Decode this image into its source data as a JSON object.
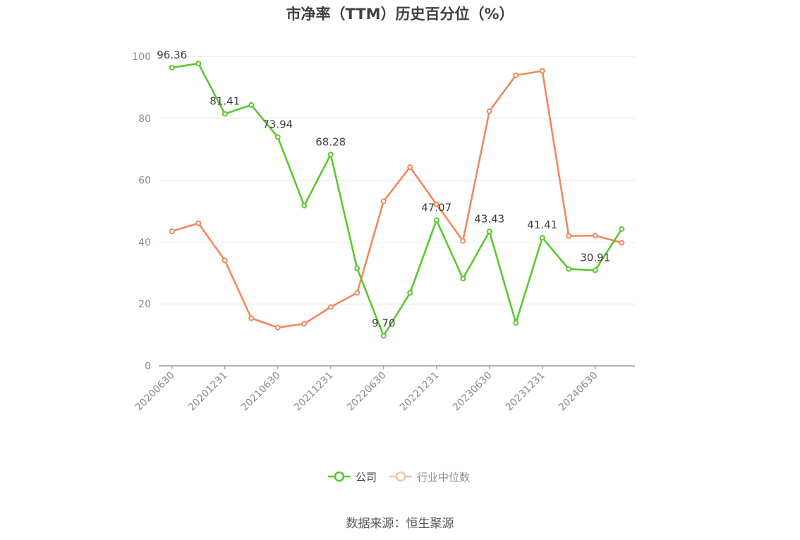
{
  "chart_data": {
    "type": "line",
    "title": "市净率（TTM）历史百分位（%）",
    "source_text": "数据来源：恒生聚源",
    "ylim": [
      0,
      100
    ],
    "yticks": [
      0,
      20,
      40,
      60,
      80,
      100
    ],
    "x": [
      "20200630",
      "20200930",
      "20201231",
      "20210331",
      "20210630",
      "20210930",
      "20211231",
      "20220331",
      "20220630",
      "20220930",
      "20221231",
      "20230331",
      "20230630",
      "20230930",
      "20231231",
      "20240331",
      "20240630",
      "20240930"
    ],
    "xtick_labels": [
      "20200630",
      "20201231",
      "20210630",
      "20211231",
      "20220630",
      "20221231",
      "20230630",
      "20231231",
      "20240630"
    ],
    "grid": true,
    "legend_position": "bottom-center",
    "series": [
      {
        "name": "公司",
        "color": "#5ac82e",
        "values": [
          96.36,
          97.7,
          81.41,
          84.3,
          73.94,
          51.8,
          68.28,
          31.5,
          9.7,
          23.6,
          47.07,
          28.2,
          43.43,
          13.9,
          41.41,
          31.3,
          30.91,
          44.2
        ],
        "labels": [
          "96.36",
          null,
          "81.41",
          null,
          "73.94",
          null,
          "68.28",
          null,
          "9.70",
          null,
          "47.07",
          null,
          "43.43",
          null,
          "41.41",
          null,
          "30.91",
          null
        ]
      },
      {
        "name": "行业中位数",
        "color": "#f0895c",
        "values": [
          43.5,
          46.1,
          34.1,
          15.4,
          12.4,
          13.6,
          19.0,
          23.6,
          53.2,
          64.2,
          52.2,
          40.4,
          82.3,
          93.9,
          95.3,
          42.0,
          42.1,
          39.8
        ]
      }
    ]
  }
}
